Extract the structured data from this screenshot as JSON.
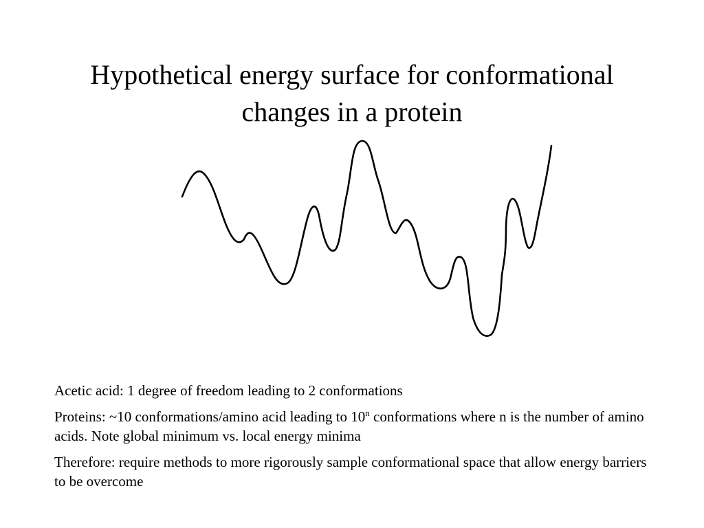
{
  "slide": {
    "title_line1": "Hypothetical energy surface for conformational",
    "title_line2": "changes in a protein",
    "paragraphs": {
      "acetic": "Acetic acid: 1 degree of freedom leading to 2 conformations",
      "proteins_before": "Proteins: ~10 conformations/amino acid leading to 10",
      "proteins_sup": "n",
      "proteins_after": " conformations where n is the number of amino acids. Note global minimum vs. local energy minima",
      "therefore": "Therefore: require methods to more rigorously sample conformational space that allow energy barriers to be overcome"
    }
  },
  "colors": {
    "background": "#ffffff",
    "text": "#000000",
    "curve": "#000000"
  }
}
